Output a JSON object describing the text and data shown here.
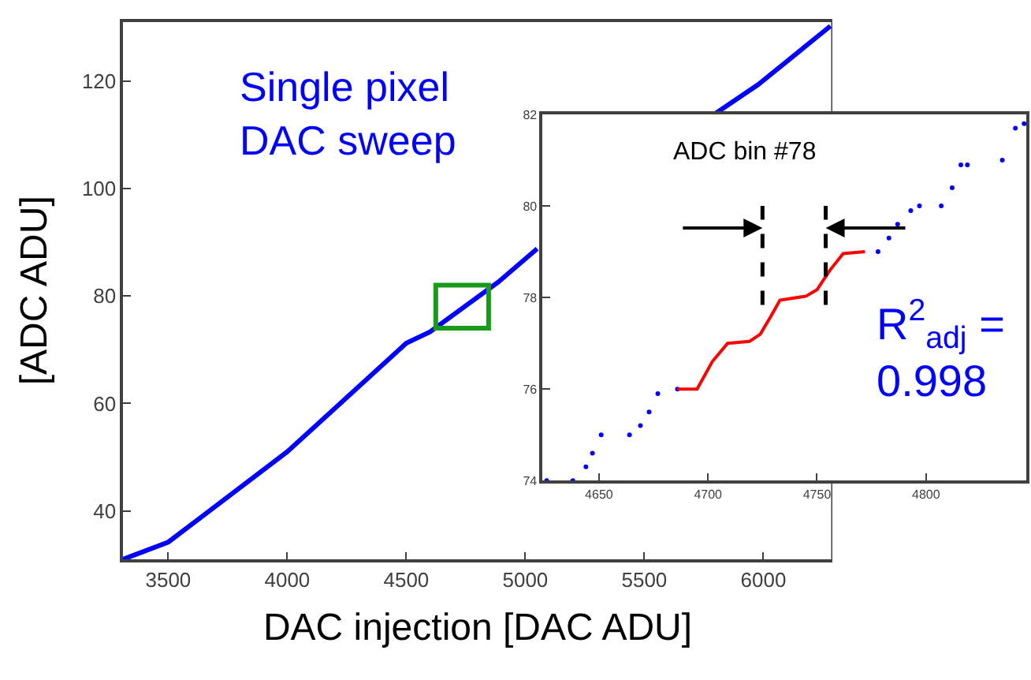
{
  "chart_data": [
    {
      "type": "line",
      "xlabel": "DAC injection [DAC ADU]",
      "ylabel": "[ADC ADU]",
      "xlim": [
        3310,
        6290
      ],
      "ylim": [
        31,
        131
      ],
      "xticks": [
        3500,
        4000,
        4500,
        5000,
        5500,
        6000
      ],
      "yticks": [
        40,
        60,
        80,
        100,
        120
      ],
      "marker": "none",
      "line_style": "solid",
      "annotations": [
        "Single pixel\nDAC sweep"
      ],
      "series": [
        {
          "color": "#0000ff",
          "x": [
            3310,
            3500,
            4000,
            4500,
            4600,
            4887,
            5050,
            5400,
            5787,
            5978,
            6282
          ],
          "values": [
            31,
            34.2,
            51,
            71.2,
            73.3,
            82.6,
            88.8,
            null,
            113.6,
            119.3,
            130.2
          ]
        }
      ]
    },
    {
      "type": "scatter",
      "xlim": [
        4624,
        4846
      ],
      "ylim": [
        74,
        82
      ],
      "xticks": [
        4650,
        4700,
        4750,
        4800
      ],
      "yticks": [
        74,
        76,
        78,
        80,
        82
      ],
      "annotations": [
        "ADC bin #78",
        "R$^{2}$$_{adj}$ =\n0.998"
      ],
      "ref_lines": [
        {
          "axis": "x",
          "value": 4725,
          "color": "#000000",
          "line_style": "dashed"
        },
        {
          "axis": "x",
          "value": 4754,
          "color": "#000000",
          "line_style": "dashed"
        }
      ],
      "series": [
        {
          "type": "scatter",
          "marker": "circle",
          "color": "#0000ff",
          "x": [
            4626,
            4638,
            4644,
            4647,
            4651,
            4664,
            4669,
            4673,
            4677,
            4686,
            4778,
            4783,
            4787,
            4793,
            4797,
            4807,
            4812,
            4816,
            4819,
            4835,
            4841,
            4845
          ],
          "values": [
            74.0,
            74.0,
            74.3,
            74.6,
            75.0,
            75.0,
            75.2,
            75.5,
            75.9,
            76.0,
            79.0,
            79.3,
            79.6,
            79.9,
            80.0,
            80.0,
            80.4,
            80.9,
            80.9,
            81.0,
            81.7,
            81.8
          ]
        },
        {
          "type": "line",
          "marker": "none",
          "color": "#ff0000",
          "x": [
            4686,
            4695,
            4702,
            4709,
            4719,
            4724,
            4729,
            4733,
            4745,
            4750,
            4756,
            4762,
            4772
          ],
          "values": [
            76.0,
            76.0,
            76.6,
            77.0,
            77.04,
            77.2,
            77.6,
            77.94,
            78.03,
            78.17,
            78.6,
            78.96,
            79.0
          ]
        }
      ]
    }
  ]
}
